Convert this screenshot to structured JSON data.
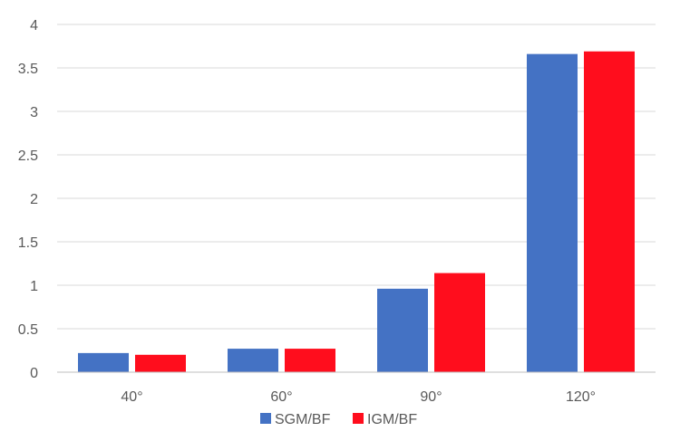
{
  "chart_data": {
    "type": "bar",
    "title": "",
    "xlabel": "",
    "ylabel": "",
    "categories": [
      "40°",
      "60°",
      "90°",
      "120°"
    ],
    "series": [
      {
        "name": "SGM/BF",
        "color": "#4472C4",
        "values": [
          0.22,
          0.27,
          0.96,
          3.66
        ]
      },
      {
        "name": "IGM/BF",
        "color": "#FF0D1D",
        "values": [
          0.2,
          0.27,
          1.14,
          3.69
        ]
      }
    ],
    "ylim": [
      0,
      4
    ],
    "yticks": [
      "0",
      "0.5",
      "1",
      "1.5",
      "2",
      "2.5",
      "3",
      "3.5",
      "4"
    ],
    "grid": true,
    "legend_position": "bottom"
  }
}
